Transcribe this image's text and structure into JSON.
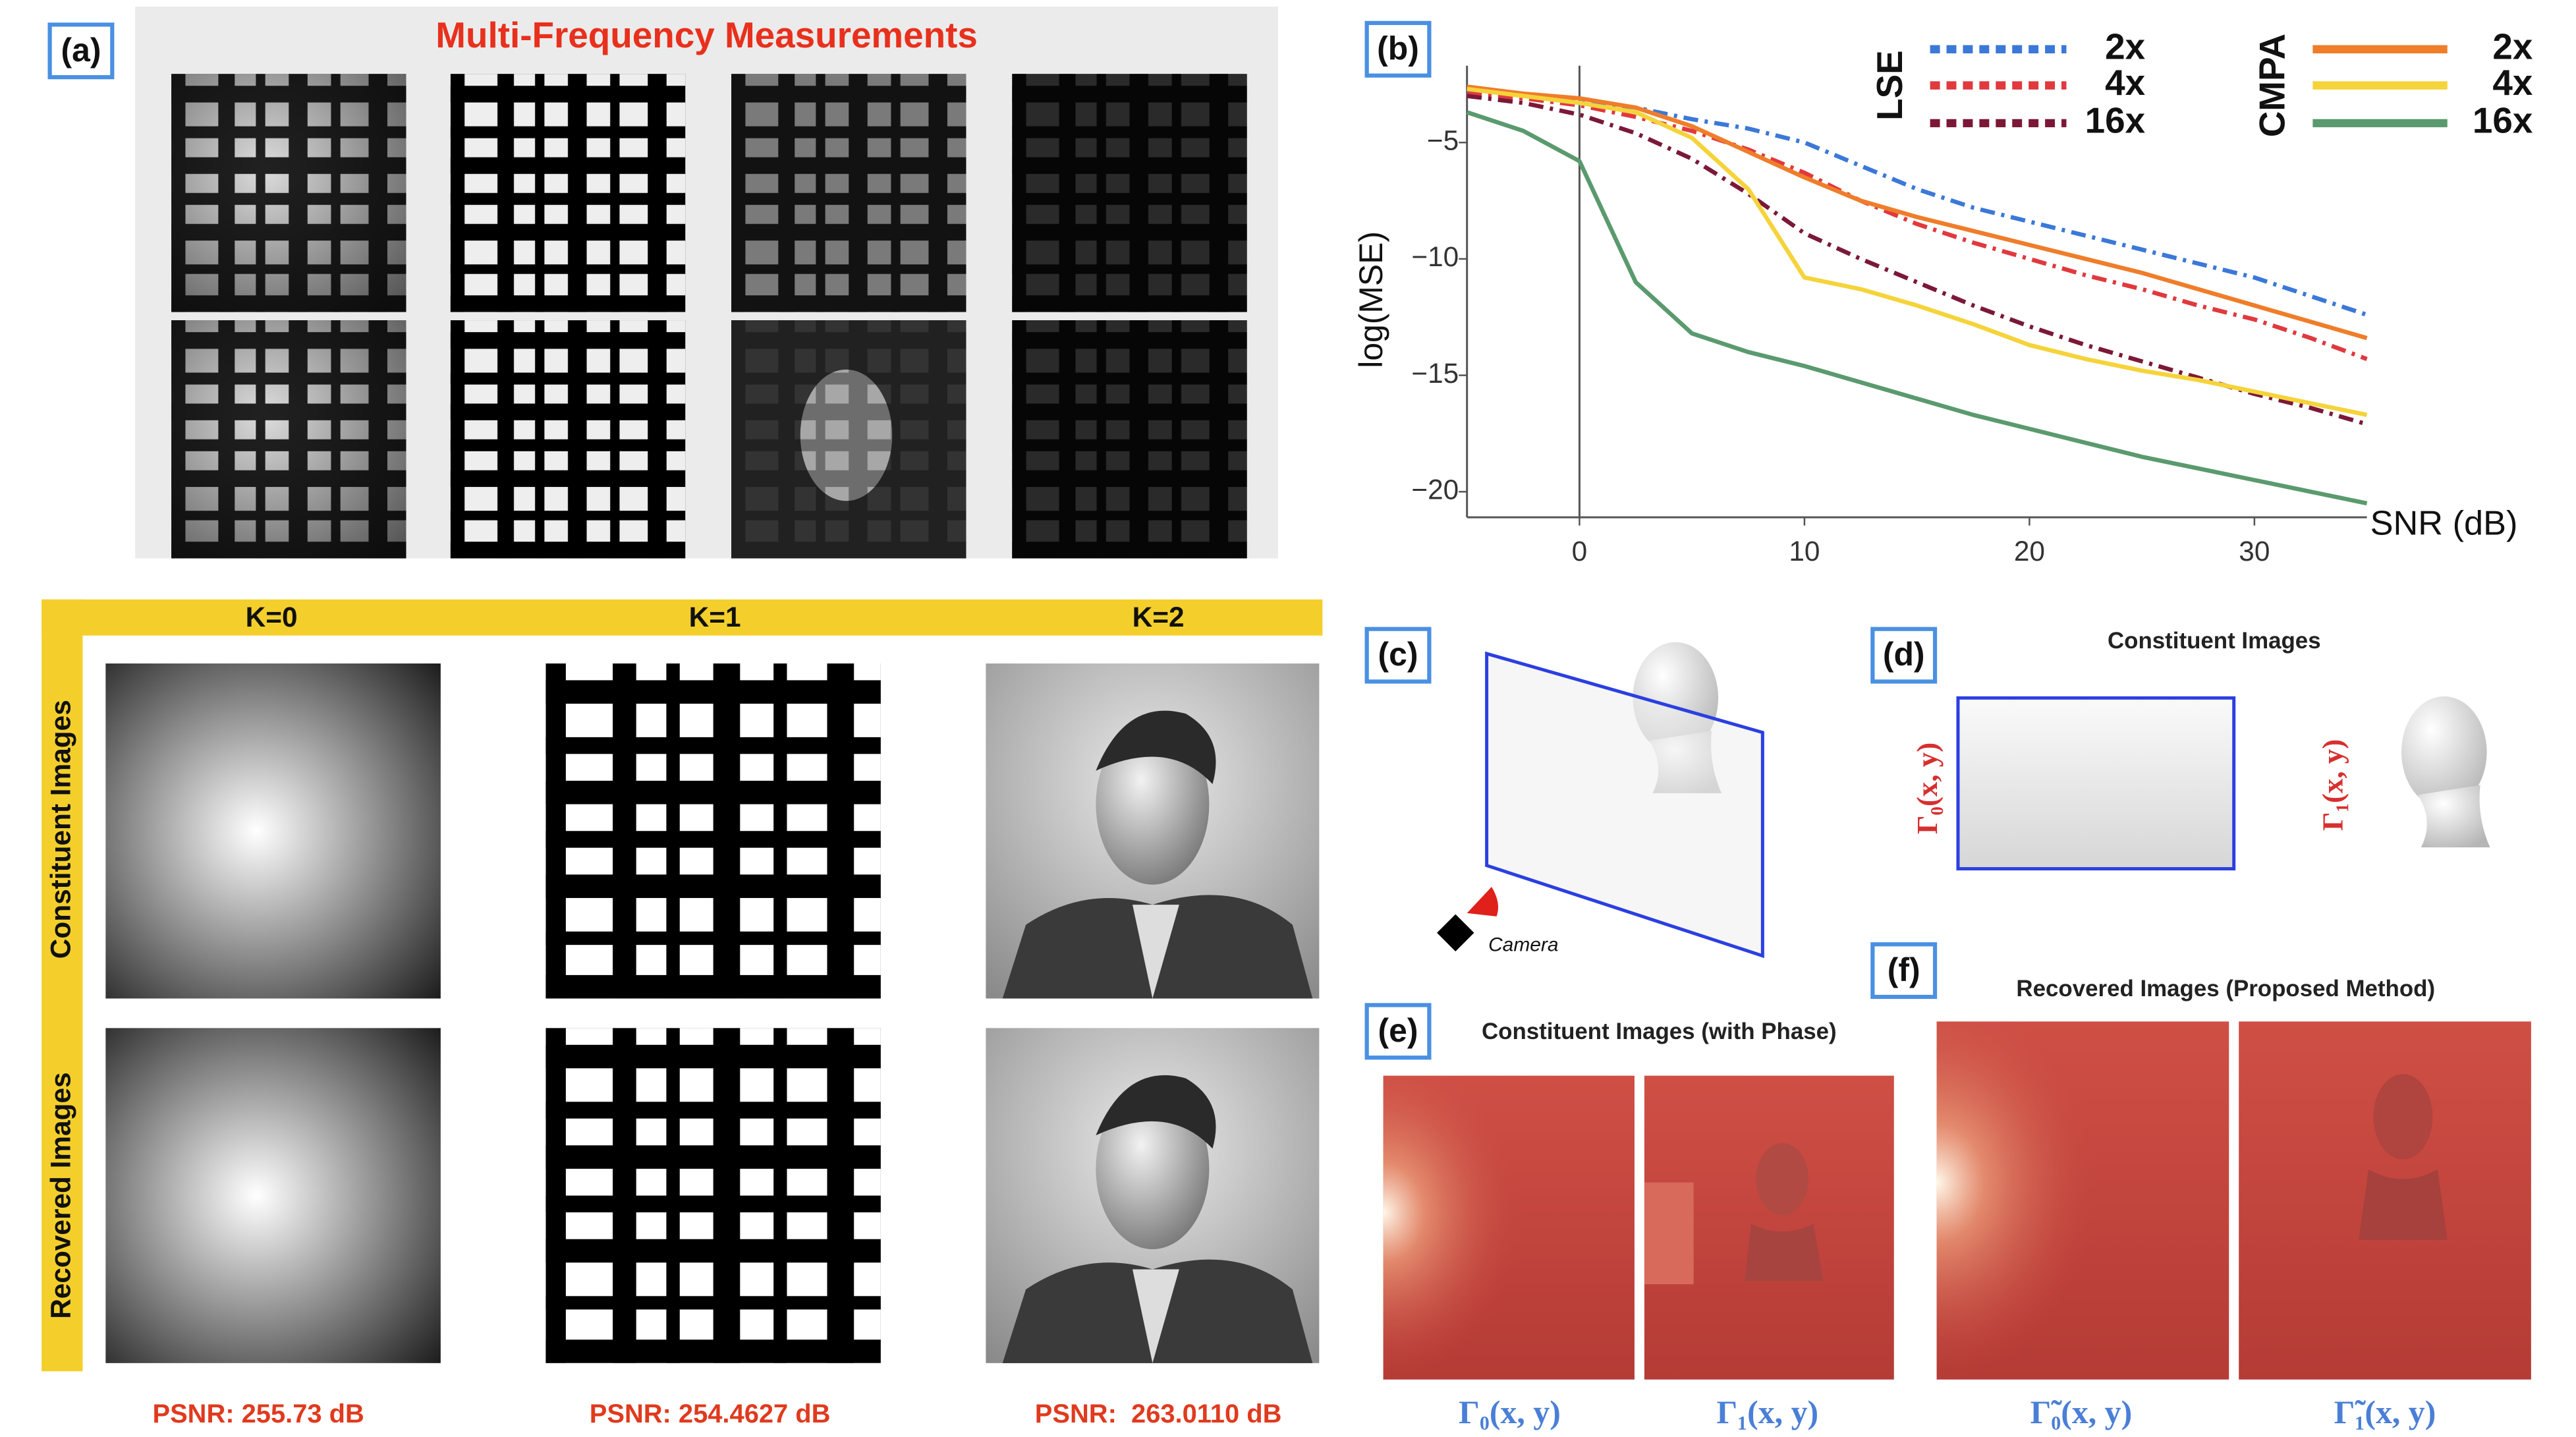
{
  "panel_labels": [
    "(a)",
    "(b)",
    "(c)",
    "(d)",
    "(e)",
    "(f)"
  ],
  "panel_a": {
    "title": "Multi-Frequency Measurements"
  },
  "reconstruction": {
    "columns": [
      "K=0",
      "K=1",
      "K=2"
    ],
    "rows": [
      "Constituent Images",
      "Recovered Images"
    ],
    "psnr": [
      "PSNR: 255.73 dB",
      "PSNR: 254.4627 dB",
      "PSNR:  263.0110 dB"
    ]
  },
  "chart_data": {
    "type": "line",
    "x_label": "SNR (dB)",
    "y_label": "log(MSE)",
    "x": [
      -5,
      -2.5,
      0,
      2.5,
      5,
      7.5,
      10,
      12.5,
      15,
      17.5,
      20,
      22.5,
      25,
      27.5,
      30,
      32.5,
      35
    ],
    "xlim": [
      -5,
      35
    ],
    "ylim": [
      -21.1,
      -1.7
    ],
    "xticks": [
      0,
      10,
      20,
      30
    ],
    "yticks": [
      {
        "value": -20,
        "label": "−20"
      },
      {
        "value": -15,
        "label": "−15"
      },
      {
        "value": -10,
        "label": "−10"
      },
      {
        "value": -5,
        "label": "−5"
      }
    ],
    "vline": 0,
    "series_groups": [
      {
        "name": "LSE",
        "line_style": "dashdot",
        "series": [
          {
            "name": "2x",
            "color": "#3b78d8",
            "values": [
              -2.8,
              -3.0,
              -3.2,
              -3.5,
              -4.0,
              -4.4,
              -5.0,
              -6.0,
              -7.0,
              -7.8,
              -8.4,
              -9.0,
              -9.6,
              -10.2,
              -10.8,
              -11.6,
              -12.4
            ]
          },
          {
            "name": "4x",
            "color": "#e0393e",
            "values": [
              -2.9,
              -3.1,
              -3.4,
              -3.9,
              -4.5,
              -5.3,
              -6.3,
              -7.5,
              -8.5,
              -9.3,
              -10.0,
              -10.7,
              -11.3,
              -12.0,
              -12.6,
              -13.4,
              -14.3
            ]
          },
          {
            "name": "16x",
            "color": "#7b1838",
            "values": [
              -3.0,
              -3.3,
              -3.8,
              -4.6,
              -5.7,
              -7.2,
              -8.9,
              -10.0,
              -11.0,
              -12.0,
              -12.9,
              -13.7,
              -14.4,
              -15.1,
              -15.8,
              -16.4,
              -17.1
            ]
          }
        ]
      },
      {
        "name": "CMPA",
        "line_style": "solid",
        "series": [
          {
            "name": "2x",
            "color": "#ef7d2a",
            "values": [
              -2.6,
              -2.9,
              -3.1,
              -3.5,
              -4.3,
              -5.4,
              -6.5,
              -7.5,
              -8.2,
              -8.8,
              -9.4,
              -10.0,
              -10.6,
              -11.3,
              -12.0,
              -12.7,
              -13.4
            ]
          },
          {
            "name": "4x",
            "color": "#f5d33a",
            "values": [
              -2.7,
              -3.0,
              -3.3,
              -3.7,
              -4.8,
              -7.0,
              -10.8,
              -11.3,
              -12.0,
              -12.8,
              -13.7,
              -14.3,
              -14.8,
              -15.2,
              -15.7,
              -16.2,
              -16.7
            ]
          },
          {
            "name": "16x",
            "color": "#5a9a6e",
            "values": [
              -3.7,
              -4.5,
              -5.8,
              -11.0,
              -13.2,
              -14.0,
              -14.6,
              -15.3,
              -16.0,
              -16.7,
              -17.3,
              -17.9,
              -18.5,
              -19.0,
              -19.5,
              -20.0,
              -20.5
            ]
          }
        ]
      }
    ]
  },
  "panel_c": {
    "camera_label": "Camera"
  },
  "panel_d": {
    "title": "Constituent Images",
    "labels": [
      "Γ₀(x, y)",
      "Γ₁(x, y)"
    ]
  },
  "panel_e": {
    "title": "Constituent Images (with Phase)",
    "labels": [
      "Γ₀(x, y)",
      "Γ₁(x, y)"
    ]
  },
  "panel_f": {
    "title": "Recovered Images (Proposed Method)",
    "labels": [
      "Γ̃₀(x, y)",
      "Γ̃₁(x, y)"
    ]
  }
}
